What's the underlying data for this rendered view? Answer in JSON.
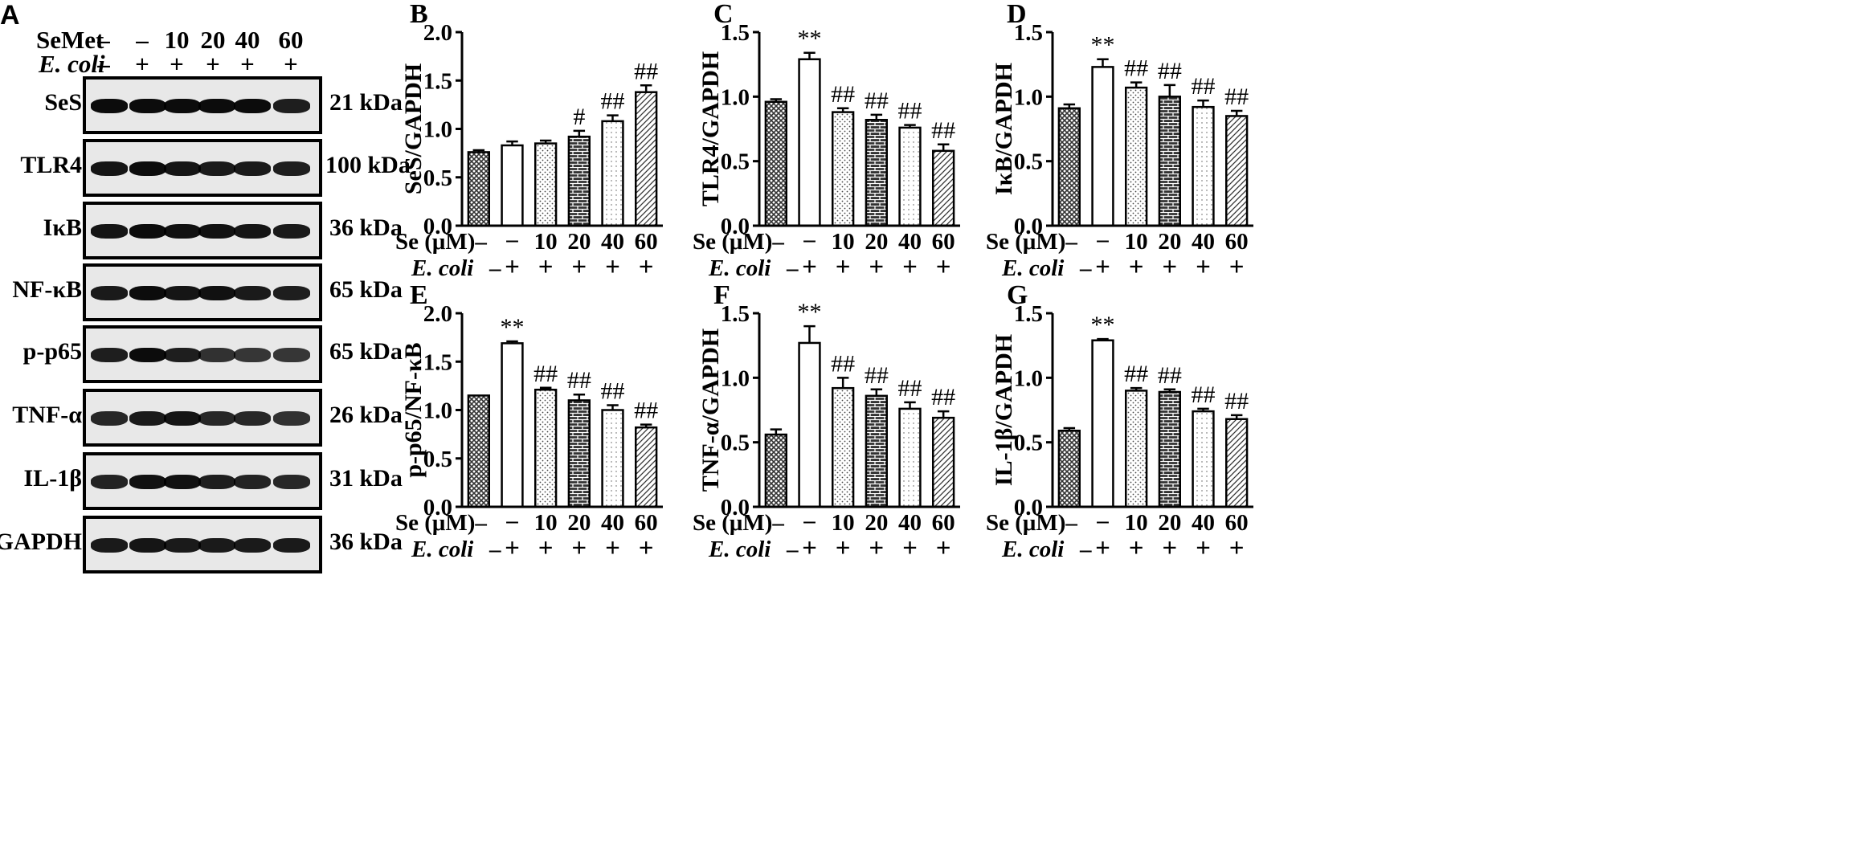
{
  "panel_a": {
    "letter": "A",
    "treatments": [
      {
        "label": "SeMet",
        "values": [
          "–",
          "–",
          "10",
          "20",
          "40",
          "60"
        ]
      },
      {
        "label": "E. coli",
        "values": [
          "–",
          "+",
          "+",
          "+",
          "+",
          "+"
        ]
      }
    ],
    "blots": [
      {
        "name": "SeS",
        "size": "21 kDa"
      },
      {
        "name": "TLR4",
        "size": "100 kDa"
      },
      {
        "name": "IκB",
        "size": "36 kDa"
      },
      {
        "name": "NF-κB",
        "size": "65 kDa"
      },
      {
        "name": "p-p65",
        "size": "65 kDa"
      },
      {
        "name": "TNF-α",
        "size": "26 kDa"
      },
      {
        "name": "IL-1β",
        "size": "31 kDa"
      },
      {
        "name": "GAPDH",
        "size": "36 kDa"
      }
    ]
  },
  "chart_data": [
    {
      "type": "bar",
      "letter": "B",
      "ylabel": "SeS/GAPDH",
      "ylim": [
        0,
        2.0
      ],
      "ticks": [
        "0.0",
        "0.5",
        "1.0",
        "1.5",
        "2.0"
      ],
      "categories": [
        "–",
        "–",
        "10",
        "20",
        "40",
        "60"
      ],
      "ecoli": [
        "–",
        "+",
        "+",
        "+",
        "+",
        "+"
      ],
      "row_label": "Se (μM)",
      "ecoli_label": "E. coli",
      "values": [
        0.76,
        0.83,
        0.85,
        0.92,
        1.08,
        1.38
      ],
      "errors": [
        0.02,
        0.04,
        0.03,
        0.06,
        0.06,
        0.07
      ],
      "annotations": [
        "",
        "",
        "",
        "#",
        "##",
        "##"
      ]
    },
    {
      "type": "bar",
      "letter": "C",
      "ylabel": "TLR4/GAPDH",
      "ylim": [
        0,
        1.5
      ],
      "ticks": [
        "0.0",
        "0.5",
        "1.0",
        "1.5"
      ],
      "categories": [
        "–",
        "–",
        "10",
        "20",
        "40",
        "60"
      ],
      "ecoli": [
        "–",
        "+",
        "+",
        "+",
        "+",
        "+"
      ],
      "row_label": "Se (μM)",
      "ecoli_label": "E. coli",
      "values": [
        0.96,
        1.29,
        0.88,
        0.82,
        0.76,
        0.58
      ],
      "errors": [
        0.02,
        0.05,
        0.03,
        0.04,
        0.02,
        0.05
      ],
      "annotations": [
        "",
        "**",
        "##",
        "##",
        "##",
        "##"
      ]
    },
    {
      "type": "bar",
      "letter": "D",
      "ylabel": "IκB/GAPDH",
      "ylim": [
        0,
        1.5
      ],
      "ticks": [
        "0.0",
        "0.5",
        "1.0",
        "1.5"
      ],
      "categories": [
        "–",
        "–",
        "10",
        "20",
        "40",
        "60"
      ],
      "ecoli": [
        "–",
        "+",
        "+",
        "+",
        "+",
        "+"
      ],
      "row_label": "Se (μM)",
      "ecoli_label": "E. coli",
      "values": [
        0.91,
        1.23,
        1.07,
        1.0,
        0.92,
        0.85
      ],
      "errors": [
        0.03,
        0.06,
        0.04,
        0.09,
        0.05,
        0.04
      ],
      "annotations": [
        "",
        "**",
        "##",
        "##",
        "##",
        "##"
      ]
    },
    {
      "type": "bar",
      "letter": "E",
      "ylabel": "p-p65/NF-κB",
      "ylim": [
        0,
        2.0
      ],
      "ticks": [
        "0.0",
        "0.5",
        "1.0",
        "1.5",
        "2.0"
      ],
      "categories": [
        "–",
        "–",
        "10",
        "20",
        "40",
        "60"
      ],
      "ecoli": [
        "–",
        "+",
        "+",
        "+",
        "+",
        "+"
      ],
      "row_label": "Se (μM)",
      "ecoli_label": "E. coli",
      "values": [
        1.15,
        1.69,
        1.21,
        1.1,
        1.0,
        0.82
      ],
      "errors": [
        0.0,
        0.02,
        0.02,
        0.06,
        0.05,
        0.03
      ],
      "annotations": [
        "",
        "**",
        "##",
        "##",
        "##",
        "##"
      ]
    },
    {
      "type": "bar",
      "letter": "F",
      "ylabel": "TNF-α/GAPDH",
      "ylim": [
        0,
        1.5
      ],
      "ticks": [
        "0.0",
        "0.5",
        "1.0",
        "1.5"
      ],
      "categories": [
        "–",
        "–",
        "10",
        "20",
        "40",
        "60"
      ],
      "ecoli": [
        "–",
        "+",
        "+",
        "+",
        "+",
        "+"
      ],
      "row_label": "Se (μM)",
      "ecoli_label": "E. coli",
      "values": [
        0.56,
        1.27,
        0.92,
        0.86,
        0.76,
        0.69
      ],
      "errors": [
        0.04,
        0.13,
        0.08,
        0.05,
        0.05,
        0.05
      ],
      "annotations": [
        "",
        "**",
        "##",
        "##",
        "##",
        "##"
      ]
    },
    {
      "type": "bar",
      "letter": "G",
      "ylabel": "IL-1β/GAPDH",
      "ylim": [
        0,
        1.5
      ],
      "ticks": [
        "0.0",
        "0.5",
        "1.0",
        "1.5"
      ],
      "categories": [
        "–",
        "–",
        "10",
        "20",
        "40",
        "60"
      ],
      "ecoli": [
        "–",
        "+",
        "+",
        "+",
        "+",
        "+"
      ],
      "row_label": "Se (μM)",
      "ecoli_label": "E. coli",
      "values": [
        0.59,
        1.29,
        0.9,
        0.89,
        0.74,
        0.68
      ],
      "errors": [
        0.02,
        0.01,
        0.02,
        0.02,
        0.02,
        0.03
      ],
      "annotations": [
        "",
        "**",
        "##",
        "##",
        "##",
        "##"
      ]
    }
  ],
  "colors": {
    "bar_stroke": "#000000",
    "bar_fill": "#ffffff",
    "dark_fill": "#444444"
  }
}
